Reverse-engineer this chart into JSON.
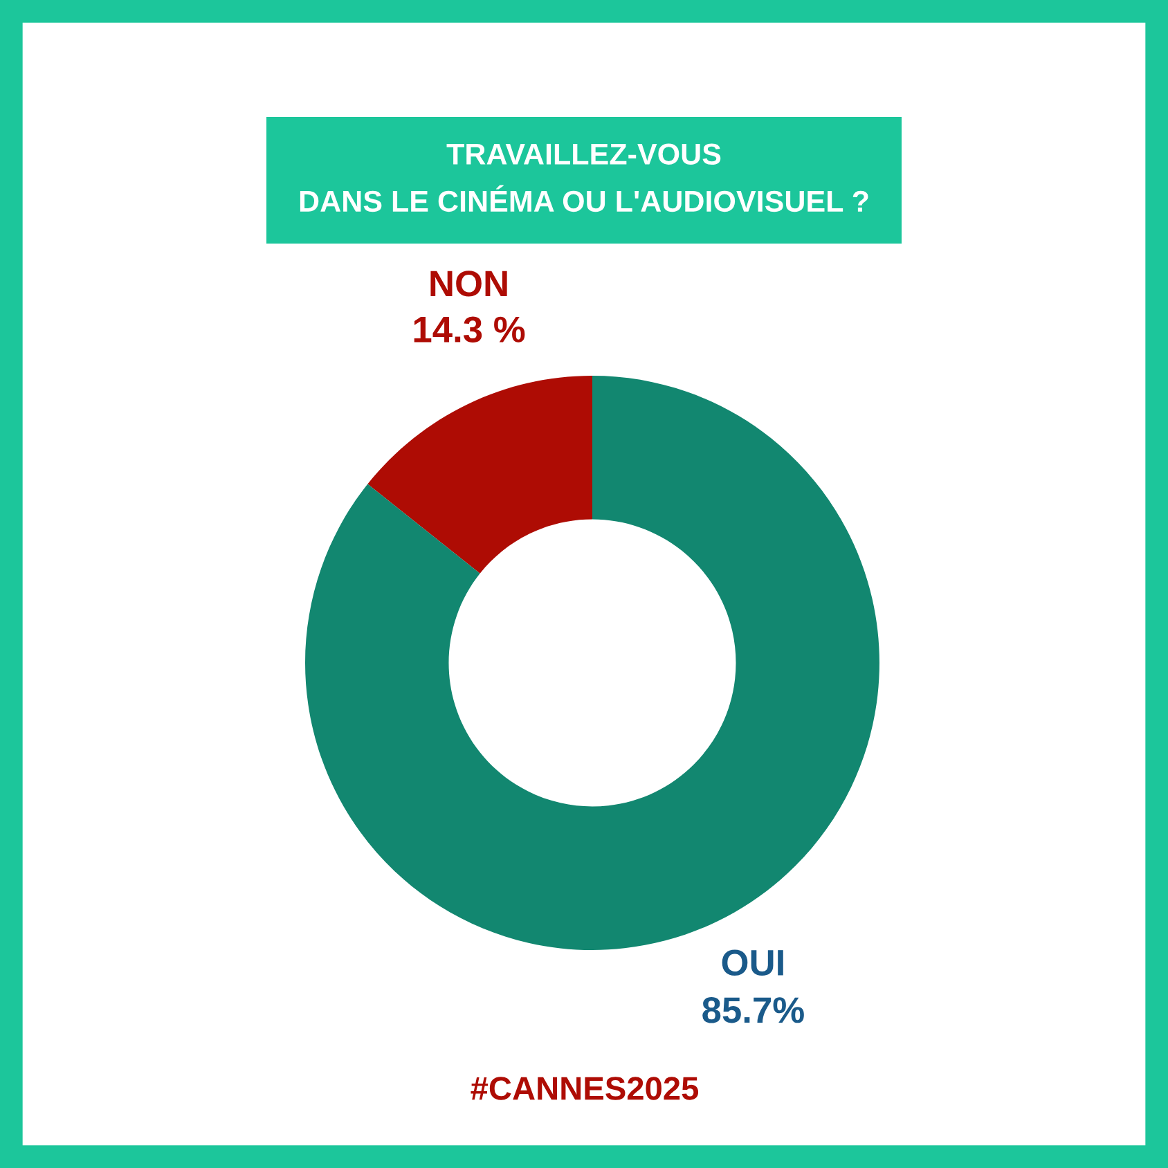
{
  "chart_data": {
    "type": "donut",
    "title": "TRAVAILLEZ-VOUS\nDANS LE CINÉMA OU L'AUDIOVISUEL ?",
    "categories": [
      "NON",
      "OUI"
    ],
    "values": [
      14.3,
      85.7
    ],
    "colors": [
      "#ae0c04",
      "#128770"
    ],
    "value_labels": [
      "14.3 %",
      "85.7%"
    ],
    "annotations": [
      "#CANNES2025"
    ]
  }
}
